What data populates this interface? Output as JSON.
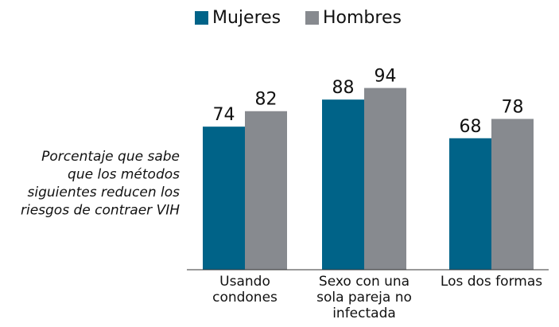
{
  "chart_data": {
    "type": "bar",
    "ylabel": [
      "Porcentaje que sabe",
      "que los métodos",
      "siguientes reducen los",
      "riesgos de contraer VIH"
    ],
    "categories": [
      "Usando condones",
      "Sexo con una sola pareja no infectada",
      "Los dos formas"
    ],
    "series": [
      {
        "name": "Mujeres",
        "color": "#006388",
        "values": [
          74,
          88,
          68
        ]
      },
      {
        "name": "Hombres",
        "color": "#878a8f",
        "values": [
          82,
          94,
          78
        ]
      }
    ],
    "ylim": [
      0,
      100
    ],
    "legend": "top"
  }
}
